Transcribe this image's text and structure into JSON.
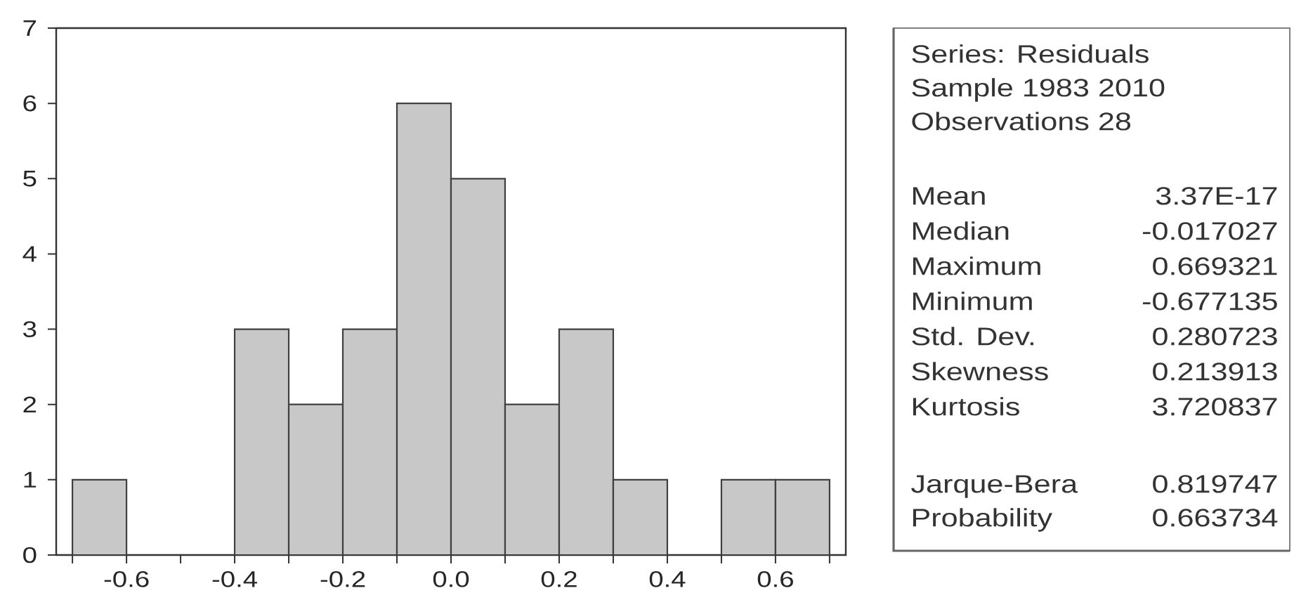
{
  "chart_data": [
    {
      "type": "histogram",
      "bins": [
        -0.7,
        -0.6,
        -0.5,
        -0.4,
        -0.3,
        -0.2,
        -0.1,
        0.0,
        0.1,
        0.2,
        0.3,
        0.4,
        0.5,
        0.6,
        0.7
      ],
      "values": [
        1,
        0,
        0,
        3,
        2,
        3,
        6,
        5,
        2,
        3,
        1,
        0,
        1,
        1
      ],
      "color": "#c8c8c8",
      "xlim": [
        -0.73,
        0.73
      ],
      "ylim": [
        0,
        7
      ],
      "xticks": [
        {
          "value": -0.7,
          "label": null
        },
        -0.6,
        {
          "value": -0.5,
          "label": null
        },
        -0.4,
        {
          "value": -0.3,
          "label": null
        },
        -0.2,
        {
          "value": -0.1,
          "label": null
        },
        {
          "value": 0,
          "label": "0.0"
        },
        {
          "value": 0.1,
          "label": null
        },
        0.2,
        {
          "value": 0.3,
          "label": null
        },
        0.4,
        {
          "value": 0.5,
          "label": null
        },
        0.6,
        {
          "value": 0.7,
          "label": null
        }
      ],
      "yticks": [
        0,
        1,
        2,
        3,
        4,
        5,
        6,
        7
      ]
    },
    {
      "type": "other",
      "annotations": [
        "Series: Residuals",
        "Sample 1983 2010",
        "Observations 28",
        "Mean",
        "3.37E-17",
        "Median",
        "-0.017027",
        "Maximum",
        "0.669321",
        "Minimum",
        "-0.677135",
        "Std. Dev.",
        "0.280723",
        "Skewness",
        "0.213913",
        "Kurtosis",
        "3.720837",
        "Jarque-Bera",
        "0.819747",
        "Probability",
        "0.663734"
      ]
    }
  ]
}
